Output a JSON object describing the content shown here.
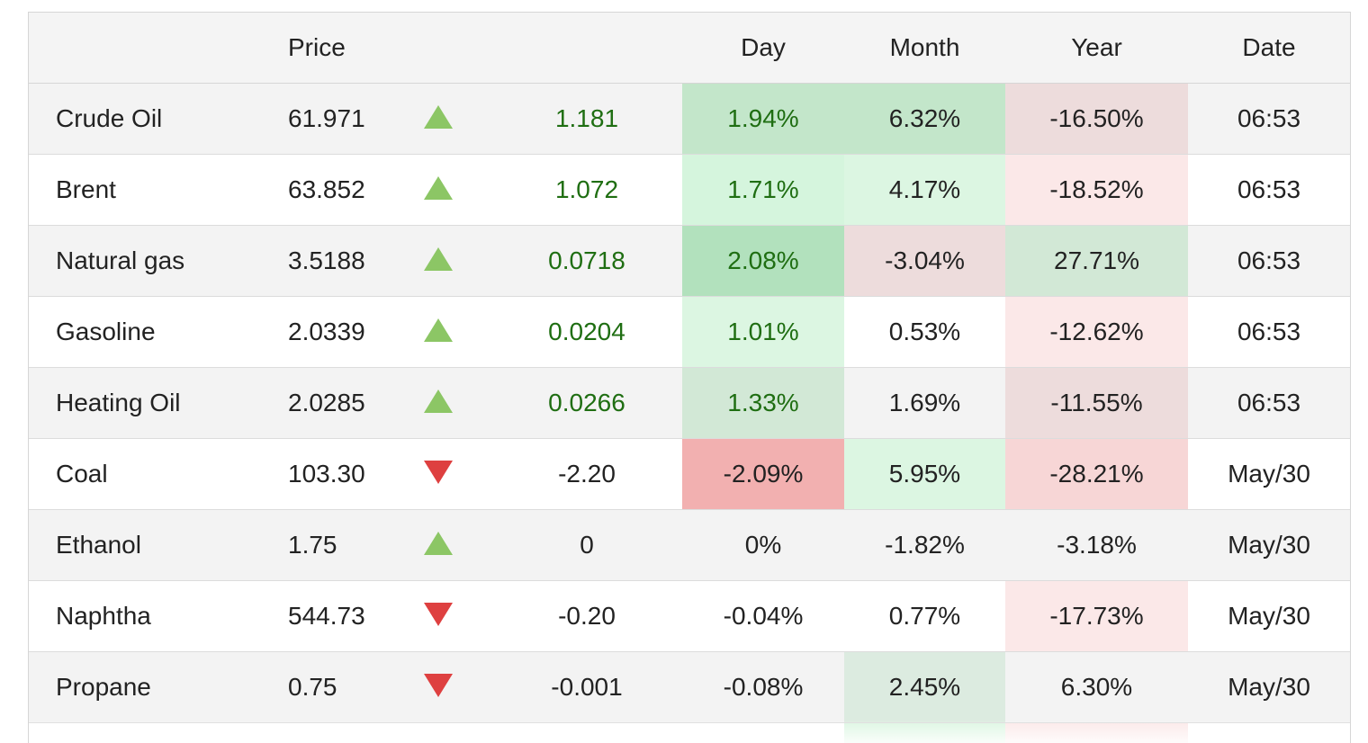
{
  "headers": {
    "name": "",
    "price": "Price",
    "arrow": "",
    "change": "",
    "day": "Day",
    "month": "Month",
    "year": "Year",
    "date": "Date"
  },
  "colors": {
    "positive_text": "#1f6e12",
    "up_arrow": "#8cc665",
    "down_arrow": "#de4040"
  },
  "rows": [
    {
      "name": "Crude Oil",
      "price": "61.971",
      "direction": "up",
      "change": "1.181",
      "day": "1.94%",
      "month": "6.32%",
      "year": "-16.50%",
      "date": "06:53",
      "day_bg": "#c3e6ca",
      "month_bg": "#c3e6ca",
      "year_bg": "#eddcdc"
    },
    {
      "name": "Brent",
      "price": "63.852",
      "direction": "up",
      "change": "1.072",
      "day": "1.71%",
      "month": "4.17%",
      "year": "-18.52%",
      "date": "06:53",
      "day_bg": "#d5f5dd",
      "month_bg": "#dcf6e2",
      "year_bg": "#fbe8e8"
    },
    {
      "name": "Natural gas",
      "price": "3.5188",
      "direction": "up",
      "change": "0.0718",
      "day": "2.08%",
      "month": "-3.04%",
      "year": "27.71%",
      "date": "06:53",
      "day_bg": "#b2e1bd",
      "month_bg": "#eddcdc",
      "year_bg": "#d2e8d6"
    },
    {
      "name": "Gasoline",
      "price": "2.0339",
      "direction": "up",
      "change": "0.0204",
      "day": "1.01%",
      "month": "0.53%",
      "year": "-12.62%",
      "date": "06:53",
      "day_bg": "#dcf6e2",
      "month_bg": "#ffffff",
      "year_bg": "#fbe8e8"
    },
    {
      "name": "Heating Oil",
      "price": "2.0285",
      "direction": "up",
      "change": "0.0266",
      "day": "1.33%",
      "month": "1.69%",
      "year": "-11.55%",
      "date": "06:53",
      "day_bg": "#d2e8d6",
      "month_bg": "#f3f3f3",
      "year_bg": "#eddcdc"
    },
    {
      "name": "Coal",
      "price": "103.30",
      "direction": "down",
      "change": "-2.20",
      "day": "-2.09%",
      "month": "5.95%",
      "year": "-28.21%",
      "date": "May/30",
      "day_bg": "#f2b0b0",
      "month_bg": "#dcf6e2",
      "year_bg": "#f7d6d6"
    },
    {
      "name": "Ethanol",
      "price": "1.75",
      "direction": "up",
      "change": "0",
      "day": "0%",
      "month": "-1.82%",
      "year": "-3.18%",
      "date": "May/30",
      "day_bg": "#f3f3f3",
      "month_bg": "#f3f3f3",
      "year_bg": "#f3f3f3"
    },
    {
      "name": "Naphtha",
      "price": "544.73",
      "direction": "down",
      "change": "-0.20",
      "day": "-0.04%",
      "month": "0.77%",
      "year": "-17.73%",
      "date": "May/30",
      "day_bg": "#ffffff",
      "month_bg": "#ffffff",
      "year_bg": "#fbe8e8"
    },
    {
      "name": "Propane",
      "price": "0.75",
      "direction": "down",
      "change": "-0.001",
      "day": "-0.08%",
      "month": "2.45%",
      "year": "6.30%",
      "date": "May/30",
      "day_bg": "#f3f3f3",
      "month_bg": "#dcebe0",
      "year_bg": "#f3f3f3"
    }
  ],
  "partial_row": {
    "month_bg": "#dcf6e2",
    "year_bg": "#fbe8e8"
  }
}
